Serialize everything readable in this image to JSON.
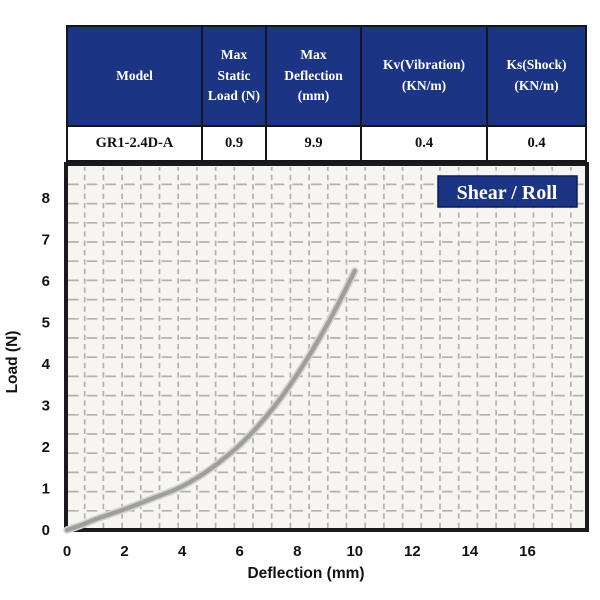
{
  "colors": {
    "header_navy": "#1c3484",
    "legend_navy": "#1c3484",
    "table_border": "#15151c",
    "plot_bg": "#f6f5f2",
    "grid_dash": "#b2b1ae",
    "axis_black": "#1a1a1e",
    "curve_gray": "#9e9e9c",
    "curve_halo": "#d4d3d0"
  },
  "table": {
    "headers": [
      "Model",
      "Max Static Load (N)",
      "Max Deflection (mm)",
      "Kv(Vibration) (KN/m)",
      "Ks(Shock) (KN/m)"
    ],
    "rows": [
      [
        "GR1-2.4D-A",
        "0.9",
        "9.9",
        "0.4",
        "0.4"
      ]
    ]
  },
  "chart_data": {
    "type": "line",
    "title": "",
    "legend_label": "Shear / Roll",
    "xlabel": "Deflection (mm)",
    "ylabel": "Load (N)",
    "xlim": [
      0,
      18
    ],
    "ylim": [
      0,
      8.8
    ],
    "xticks": [
      0,
      2,
      4,
      6,
      8,
      10,
      12,
      14,
      16
    ],
    "yticks": [
      0,
      1,
      2,
      3,
      4,
      5,
      6,
      7,
      8
    ],
    "grid": "dashed",
    "legend_position": "top-right",
    "series": [
      {
        "name": "load-vs-deflection",
        "color": "#9e9e9c",
        "points": [
          [
            0,
            0
          ],
          [
            0.5,
            0.12
          ],
          [
            1,
            0.26
          ],
          [
            1.5,
            0.38
          ],
          [
            2,
            0.5
          ],
          [
            2.5,
            0.63
          ],
          [
            3,
            0.77
          ],
          [
            3.5,
            0.9
          ],
          [
            4,
            1.05
          ],
          [
            4.5,
            1.25
          ],
          [
            5,
            1.48
          ],
          [
            5.5,
            1.75
          ],
          [
            6,
            2.05
          ],
          [
            6.5,
            2.4
          ],
          [
            7,
            2.8
          ],
          [
            7.5,
            3.25
          ],
          [
            8,
            3.75
          ],
          [
            8.5,
            4.3
          ],
          [
            9,
            4.9
          ],
          [
            9.5,
            5.55
          ],
          [
            10,
            6.25
          ]
        ]
      }
    ]
  }
}
